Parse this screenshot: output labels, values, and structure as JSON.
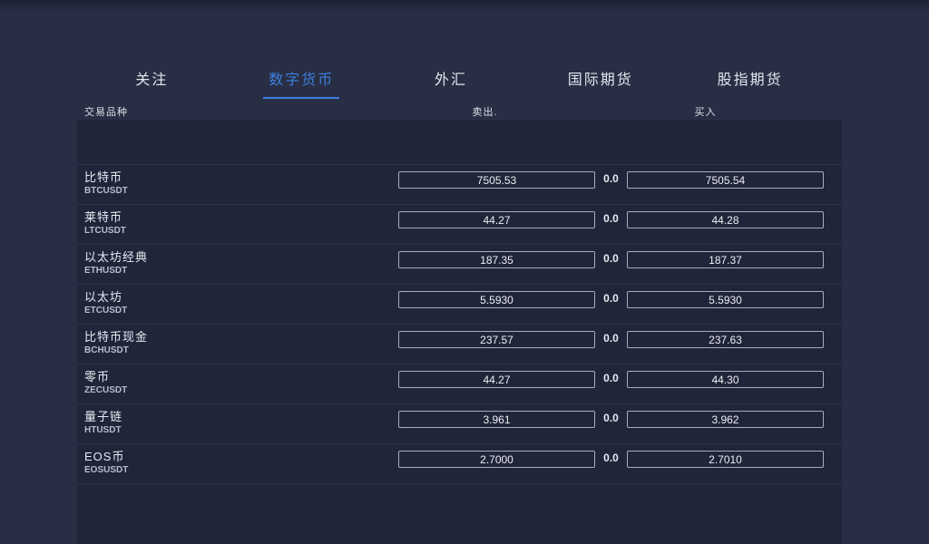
{
  "colors": {
    "page_bg": "#282e44",
    "panel_bg": "#20253a",
    "separator": "#2e3349",
    "box_border": "#a7adbd",
    "accent_blue": "#3d7ede",
    "text_primary": "#eceef2",
    "text_dim": "#b7bcca"
  },
  "tabs": {
    "active_index": 1,
    "items": [
      {
        "label": "关注"
      },
      {
        "label": "数字货币"
      },
      {
        "label": "外汇"
      },
      {
        "label": "国际期货"
      },
      {
        "label": "股指期货"
      }
    ]
  },
  "table": {
    "headers": {
      "instrument": "交易品种",
      "sell": "卖出.",
      "buy": "买入"
    },
    "rows": [
      {
        "name": "比特币",
        "symbol": "BTCUSDT",
        "sell": "7505.53",
        "spread": "0.0",
        "buy": "7505.54"
      },
      {
        "name": "莱特币",
        "symbol": "LTCUSDT",
        "sell": "44.27",
        "spread": "0.0",
        "buy": "44.28"
      },
      {
        "name": "以太坊经典",
        "symbol": "ETHUSDT",
        "sell": "187.35",
        "spread": "0.0",
        "buy": "187.37"
      },
      {
        "name": "以太坊",
        "symbol": "ETCUSDT",
        "sell": "5.5930",
        "spread": "0.0",
        "buy": "5.5930"
      },
      {
        "name": "比特币现金",
        "symbol": "BCHUSDT",
        "sell": "237.57",
        "spread": "0.0",
        "buy": "237.63"
      },
      {
        "name": "零币",
        "symbol": "ZECUSDT",
        "sell": "44.27",
        "spread": "0.0",
        "buy": "44.30"
      },
      {
        "name": "量子链",
        "symbol": "HTUSDT",
        "sell": "3.961",
        "spread": "0.0",
        "buy": "3.962"
      },
      {
        "name": "EOS币",
        "symbol": "EOSUSDT",
        "sell": "2.7000",
        "spread": "0.0",
        "buy": "2.7010"
      }
    ]
  }
}
